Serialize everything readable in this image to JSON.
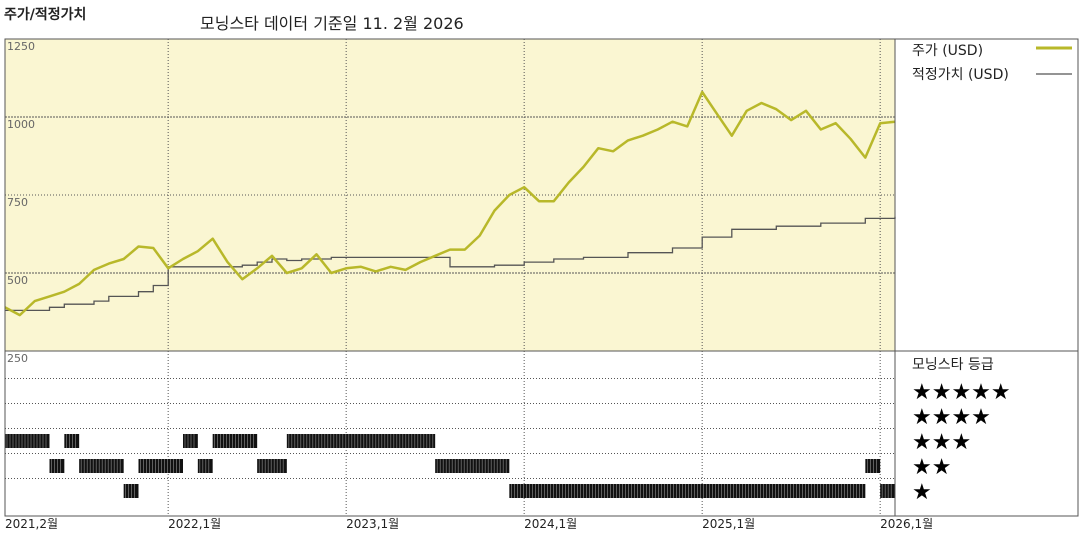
{
  "header": {
    "label": "주가/적정가치",
    "subtitle": "모닝스타 데이터 기준일 11. 2월 2026"
  },
  "colors": {
    "price": "#b8b82a",
    "fair": "#555555",
    "plot_bg": "#faf6d2",
    "grid": "#555555",
    "rating": "#111111"
  },
  "chart_data": {
    "type": "line",
    "yticks": [
      250,
      500,
      750,
      1000,
      1250
    ],
    "ylim": [
      250,
      1250
    ],
    "xlim": [
      "2021-02",
      "2026-02"
    ],
    "xticks": [
      {
        "date": "2021-02",
        "label": "2021,2월"
      },
      {
        "date": "2022-01",
        "label": "2022,1월"
      },
      {
        "date": "2023-01",
        "label": "2023,1월"
      },
      {
        "date": "2024-01",
        "label": "2024,1월"
      },
      {
        "date": "2025-01",
        "label": "2025,1월"
      },
      {
        "date": "2026-01",
        "label": "2026,1월"
      }
    ],
    "series": [
      {
        "name": "주가 (USD)",
        "points": [
          [
            "2021-02",
            390
          ],
          [
            "2021-03",
            365
          ],
          [
            "2021-04",
            410
          ],
          [
            "2021-05",
            425
          ],
          [
            "2021-06",
            440
          ],
          [
            "2021-07",
            465
          ],
          [
            "2021-08",
            510
          ],
          [
            "2021-09",
            530
          ],
          [
            "2021-10",
            545
          ],
          [
            "2021-11",
            585
          ],
          [
            "2021-12",
            580
          ],
          [
            "2022-01",
            515
          ],
          [
            "2022-02",
            545
          ],
          [
            "2022-03",
            570
          ],
          [
            "2022-04",
            610
          ],
          [
            "2022-05",
            535
          ],
          [
            "2022-06",
            480
          ],
          [
            "2022-07",
            515
          ],
          [
            "2022-08",
            555
          ],
          [
            "2022-09",
            500
          ],
          [
            "2022-10",
            515
          ],
          [
            "2022-11",
            560
          ],
          [
            "2022-12",
            500
          ],
          [
            "2023-01",
            515
          ],
          [
            "2023-02",
            520
          ],
          [
            "2023-03",
            505
          ],
          [
            "2023-04",
            520
          ],
          [
            "2023-05",
            510
          ],
          [
            "2023-06",
            535
          ],
          [
            "2023-07",
            555
          ],
          [
            "2023-08",
            575
          ],
          [
            "2023-09",
            575
          ],
          [
            "2023-10",
            620
          ],
          [
            "2023-11",
            700
          ],
          [
            "2023-12",
            750
          ],
          [
            "2024-01",
            775
          ],
          [
            "2024-02",
            730
          ],
          [
            "2024-03",
            730
          ],
          [
            "2024-04",
            790
          ],
          [
            "2024-05",
            840
          ],
          [
            "2024-06",
            900
          ],
          [
            "2024-07",
            890
          ],
          [
            "2024-08",
            925
          ],
          [
            "2024-09",
            940
          ],
          [
            "2024-10",
            960
          ],
          [
            "2024-11",
            985
          ],
          [
            "2024-12",
            970
          ],
          [
            "2025-01",
            1080
          ],
          [
            "2025-02",
            1010
          ],
          [
            "2025-03",
            940
          ],
          [
            "2025-04",
            1020
          ],
          [
            "2025-05",
            1045
          ],
          [
            "2025-06",
            1025
          ],
          [
            "2025-07",
            990
          ],
          [
            "2025-08",
            1020
          ],
          [
            "2025-09",
            960
          ],
          [
            "2025-10",
            980
          ],
          [
            "2025-11",
            930
          ],
          [
            "2025-12",
            870
          ],
          [
            "2026-01",
            980
          ],
          [
            "2026-02",
            985
          ]
        ]
      },
      {
        "name": "적정가치 (USD)",
        "points": [
          [
            "2021-02",
            380
          ],
          [
            "2021-04",
            380
          ],
          [
            "2021-05",
            390
          ],
          [
            "2021-06",
            400
          ],
          [
            "2021-08",
            410
          ],
          [
            "2021-09",
            425
          ],
          [
            "2021-11",
            440
          ],
          [
            "2021-12",
            460
          ],
          [
            "2022-01",
            520
          ],
          [
            "2022-06",
            525
          ],
          [
            "2022-07",
            535
          ],
          [
            "2022-08",
            545
          ],
          [
            "2022-09",
            540
          ],
          [
            "2022-10",
            545
          ],
          [
            "2022-12",
            550
          ],
          [
            "2023-01",
            550
          ],
          [
            "2023-07",
            550
          ],
          [
            "2023-08",
            520
          ],
          [
            "2023-11",
            525
          ],
          [
            "2024-01",
            535
          ],
          [
            "2024-03",
            545
          ],
          [
            "2024-05",
            550
          ],
          [
            "2024-08",
            565
          ],
          [
            "2024-11",
            580
          ],
          [
            "2025-01",
            615
          ],
          [
            "2025-03",
            640
          ],
          [
            "2025-06",
            650
          ],
          [
            "2025-09",
            660
          ],
          [
            "2025-12",
            675
          ],
          [
            "2026-02",
            680
          ]
        ]
      }
    ],
    "rating_panel": {
      "title": "모닝스타 등급",
      "levels": [
        "★★★★★",
        "★★★★",
        "★★★",
        "★★",
        "★"
      ],
      "ranges": [
        {
          "stars": 3,
          "from": "2021-02",
          "to": "2021-05"
        },
        {
          "stars": 3,
          "from": "2021-06",
          "to": "2021-07"
        },
        {
          "stars": 2,
          "from": "2021-05",
          "to": "2021-06"
        },
        {
          "stars": 2,
          "from": "2021-07",
          "to": "2021-10"
        },
        {
          "stars": 1,
          "from": "2021-10",
          "to": "2021-11"
        },
        {
          "stars": 2,
          "from": "2021-11",
          "to": "2022-02"
        },
        {
          "stars": 3,
          "from": "2022-02",
          "to": "2022-03"
        },
        {
          "stars": 2,
          "from": "2022-03",
          "to": "2022-04"
        },
        {
          "stars": 3,
          "from": "2022-04",
          "to": "2022-07"
        },
        {
          "stars": 2,
          "from": "2022-07",
          "to": "2022-09"
        },
        {
          "stars": 3,
          "from": "2022-09",
          "to": "2023-07"
        },
        {
          "stars": 2,
          "from": "2023-07",
          "to": "2023-12"
        },
        {
          "stars": 1,
          "from": "2023-12",
          "to": "2025-12"
        },
        {
          "stars": 2,
          "from": "2025-12",
          "to": "2026-01"
        },
        {
          "stars": 1,
          "from": "2026-01",
          "to": "2026-02"
        }
      ]
    }
  }
}
